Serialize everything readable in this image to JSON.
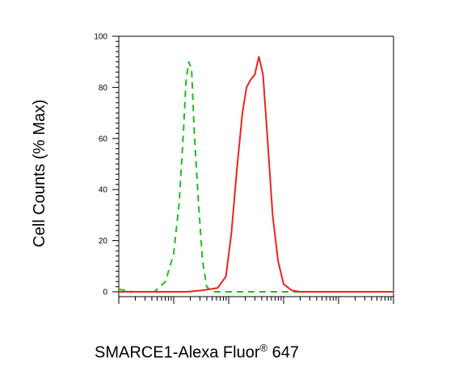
{
  "chart_data": {
    "type": "line",
    "xlabel_parts": {
      "before": "SMARCE1-Alexa Fluor",
      "sup": "®",
      "after": " 647"
    },
    "ylabel": "Cell Counts (% Max)",
    "ylim": [
      0,
      100
    ],
    "yticks": [
      "0",
      "20",
      "40",
      "60",
      "80",
      "100"
    ],
    "x_scale": "log (unlabeled tick marks)",
    "grid": false,
    "legend": "none",
    "series": [
      {
        "color": "#22bb22",
        "style": "dashed",
        "points": [
          [
            0.0,
            1
          ],
          [
            0.05,
            0
          ],
          [
            0.13,
            0
          ],
          [
            0.17,
            4
          ],
          [
            0.2,
            15
          ],
          [
            0.22,
            35
          ],
          [
            0.235,
            62
          ],
          [
            0.245,
            83
          ],
          [
            0.255,
            90
          ],
          [
            0.265,
            87
          ],
          [
            0.275,
            62
          ],
          [
            0.29,
            35
          ],
          [
            0.305,
            12
          ],
          [
            0.32,
            2
          ],
          [
            0.34,
            0
          ],
          [
            1.0,
            0
          ]
        ]
      },
      {
        "color": "#ee2222",
        "style": "solid",
        "points": [
          [
            0.0,
            0
          ],
          [
            0.25,
            0
          ],
          [
            0.3,
            0.5
          ],
          [
            0.36,
            1.5
          ],
          [
            0.39,
            6
          ],
          [
            0.41,
            23
          ],
          [
            0.43,
            48
          ],
          [
            0.45,
            70
          ],
          [
            0.465,
            80
          ],
          [
            0.48,
            83
          ],
          [
            0.495,
            85
          ],
          [
            0.51,
            92
          ],
          [
            0.525,
            85
          ],
          [
            0.54,
            62
          ],
          [
            0.56,
            30
          ],
          [
            0.58,
            12
          ],
          [
            0.6,
            3
          ],
          [
            0.63,
            0.5
          ],
          [
            0.66,
            0
          ],
          [
            1.0,
            0
          ]
        ]
      }
    ]
  }
}
